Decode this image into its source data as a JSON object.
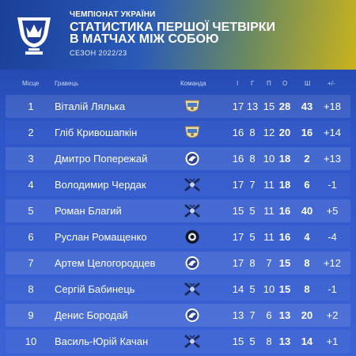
{
  "header": {
    "top_line": "ЧЕМПІОНАТ УКРАЇНИ",
    "title_line1": "СТАТИСТИКА ПЕРШОЇ ЧЕТВІРКИ",
    "title_line2": "В МАТЧАХ МІЖ СОБОЮ",
    "season": "СЕЗОН 2022/23"
  },
  "columns": {
    "rank": "Місце",
    "player": "Гравець",
    "team": "Команда",
    "i": "І",
    "g": "Г",
    "p": "П",
    "o": "О",
    "sh": "Ш",
    "pm": "+/-"
  },
  "rows": [
    {
      "rank": "1",
      "player": "Віталій Лялька",
      "team_icon": "team-crest-beige-icon",
      "i": "17",
      "g": "13",
      "p": "15",
      "o": "28",
      "sh": "43",
      "pm": "+18"
    },
    {
      "rank": "2",
      "player": "Гліб Кривошапкін",
      "team_icon": "team-crest-beige-icon",
      "i": "16",
      "g": "8",
      "p": "12",
      "o": "20",
      "sh": "16",
      "pm": "+14"
    },
    {
      "rank": "3",
      "player": "Дмитро Попережай",
      "team_icon": "team-crest-round-blue-icon",
      "i": "16",
      "g": "8",
      "p": "10",
      "o": "18",
      "sh": "2",
      "pm": "+13"
    },
    {
      "rank": "4",
      "player": "Володимир Чердак",
      "team_icon": "team-crest-crossed-sticks-icon",
      "i": "17",
      "g": "7",
      "p": "11",
      "o": "18",
      "sh": "6",
      "pm": "-1"
    },
    {
      "rank": "5",
      "player": "Роман Благий",
      "team_icon": "team-crest-crossed-sticks-icon",
      "i": "15",
      "g": "5",
      "p": "11",
      "o": "16",
      "sh": "40",
      "pm": "+5"
    },
    {
      "rank": "6",
      "player": "Руслан Ромащенко",
      "team_icon": "team-crest-round-dark-icon",
      "i": "17",
      "g": "5",
      "p": "11",
      "o": "16",
      "sh": "4",
      "pm": "-4"
    },
    {
      "rank": "7",
      "player": "Артем Целогородцев",
      "team_icon": "team-crest-round-blue-icon",
      "i": "17",
      "g": "8",
      "p": "7",
      "o": "15",
      "sh": "8",
      "pm": "+12"
    },
    {
      "rank": "8",
      "player": "Сергій Бабинець",
      "team_icon": "team-crest-crossed-sticks-icon",
      "i": "14",
      "g": "5",
      "p": "10",
      "o": "15",
      "sh": "8",
      "pm": "-1"
    },
    {
      "rank": "9",
      "player": "Денис Бородай",
      "team_icon": "team-crest-round-blue-icon",
      "i": "13",
      "g": "7",
      "p": "6",
      "o": "13",
      "sh": "20",
      "pm": "+2"
    },
    {
      "rank": "10",
      "player": "Василь-Юрій Качан",
      "team_icon": "team-crest-crossed-sticks-icon",
      "i": "15",
      "g": "5",
      "p": "8",
      "o": "13",
      "sh": "14",
      "pm": "+1"
    }
  ],
  "colors": {
    "background": "#2d56c8",
    "accent_yellow": "#c9b31c",
    "text": "#ffffff"
  }
}
